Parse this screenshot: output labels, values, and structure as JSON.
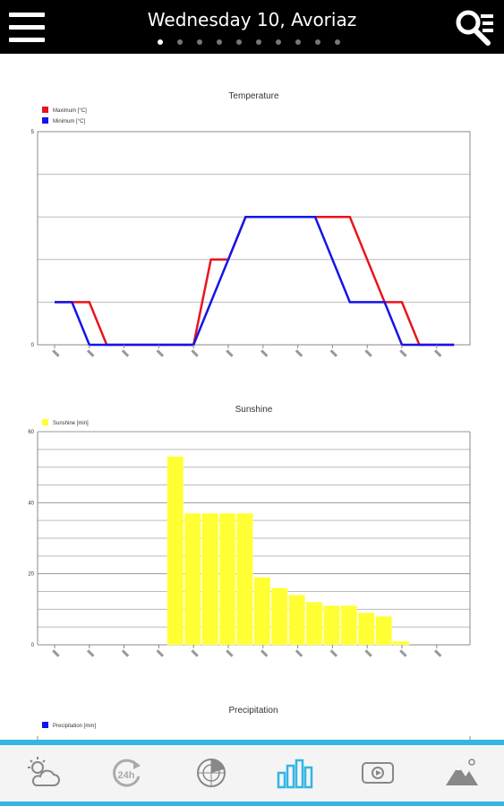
{
  "header": {
    "title": "Wednesday 10, Avoriaz",
    "page_count": 10,
    "active_page": 0
  },
  "colors": {
    "header_bg": "#000000",
    "accent": "#33b5e5",
    "max_temp": "#e8141c",
    "min_temp": "#1414e8",
    "sunshine": "#ffff33",
    "precip": "#1414e8"
  },
  "icons": {
    "menu": "hamburger-menu-icon",
    "search": "search-list-icon",
    "tabs": [
      "weather-cloud-sun-icon",
      "24h-refresh-icon",
      "radar-icon",
      "bar-chart-icon",
      "video-play-icon",
      "mountain-icon"
    ]
  },
  "tabs": {
    "active_index": 3
  },
  "chart_data": [
    {
      "type": "line",
      "title": "Temperature",
      "legend": [
        "Maximum [°C]",
        "Minimum [°C]"
      ],
      "legend_placement": "top-left",
      "x_count": 24,
      "ylim": [
        0,
        5
      ],
      "yticks": [
        "0",
        "5"
      ],
      "grid": true,
      "series": [
        {
          "name": "Maximum [°C]",
          "color": "#e8141c",
          "values": [
            1,
            1,
            1,
            0,
            0,
            0,
            0,
            0,
            0,
            2,
            2,
            3,
            3,
            3,
            3,
            3,
            3,
            3,
            2,
            1,
            1,
            0,
            0,
            0
          ]
        },
        {
          "name": "Minimum [°C]",
          "color": "#1414e8",
          "values": [
            1,
            1,
            0,
            0,
            0,
            0,
            0,
            0,
            0,
            1,
            2,
            3,
            3,
            3,
            3,
            3,
            2,
            1,
            1,
            1,
            0,
            0,
            0,
            0
          ]
        }
      ]
    },
    {
      "type": "bar",
      "title": "Sunshine",
      "legend": [
        "Sunshine [min]"
      ],
      "legend_placement": "top-left",
      "ylim": [
        0,
        60
      ],
      "yticks": [
        "0",
        "20",
        "40",
        "60"
      ],
      "grid": true,
      "values": [
        0,
        0,
        0,
        0,
        0,
        0,
        0,
        53,
        37,
        37,
        37,
        37,
        19,
        16,
        14,
        12,
        11,
        11,
        9,
        8,
        1,
        0,
        0,
        0
      ],
      "color": "#ffff33"
    },
    {
      "type": "bar",
      "title": "Precipitation",
      "legend": [
        "Precipitation [mm]"
      ],
      "legend_placement": "top-left"
    }
  ]
}
